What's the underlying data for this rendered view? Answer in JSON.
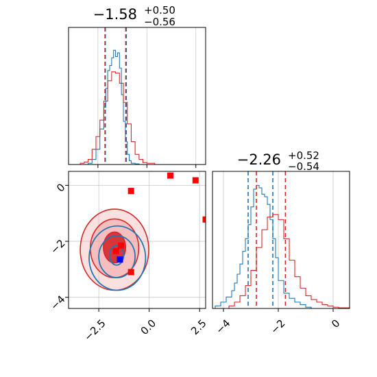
{
  "colors": {
    "red": "#d62728",
    "blue": "#1f77b4",
    "red_fill": "#f4a6a6",
    "marker_red": "#ff0000",
    "marker_blue": "#0000ff",
    "grid": "#c8c8c8"
  },
  "chart_data": {
    "type": "scatter",
    "grid": true,
    "panels": {
      "top_left": {
        "kind": "histogram",
        "title_value": "−1.58",
        "title_sup": "+0.50",
        "title_sub": "−0.56",
        "xlim": [
          -4,
          3
        ],
        "ymax": 1.0,
        "ticks_visible": false,
        "gridlines_x": [
          -2.5,
          0,
          2.5
        ],
        "series": [
          {
            "name": "",
            "color": "blue",
            "edges": [
              -3.0,
              -2.8,
              -2.6,
              -2.4,
              -2.2,
              -2.1,
              -2.0,
              -1.9,
              -1.8,
              -1.7,
              -1.6,
              -1.5,
              -1.4,
              -1.3,
              -1.2,
              -1.1,
              -1.0,
              -0.9,
              -0.8,
              -0.6,
              -0.4,
              -0.2
            ],
            "heights": [
              0.01,
              0.04,
              0.12,
              0.28,
              0.45,
              0.6,
              0.74,
              0.78,
              0.84,
              0.9,
              0.85,
              0.88,
              0.76,
              0.55,
              0.34,
              0.18,
              0.08,
              0.03,
              0.01,
              0.005,
              0.0
            ],
            "quantile_lines": [
              -2.12,
              -1.05
            ]
          },
          {
            "name": "",
            "color": "red",
            "edges": [
              -3.4,
              -3.2,
              -3.0,
              -2.8,
              -2.6,
              -2.4,
              -2.2,
              -2.0,
              -1.8,
              -1.6,
              -1.4,
              -1.2,
              -1.0,
              -0.8,
              -0.6,
              -0.4,
              -0.2,
              0.0,
              0.4
            ],
            "heights": [
              0.01,
              0.02,
              0.04,
              0.12,
              0.22,
              0.35,
              0.5,
              0.66,
              0.73,
              0.72,
              0.64,
              0.49,
              0.32,
              0.18,
              0.08,
              0.04,
              0.015,
              0.01
            ],
            "quantile_lines": [
              -2.14,
              -1.08
            ]
          }
        ]
      },
      "bottom_left": {
        "kind": "contour",
        "xlim": [
          -4,
          2.8
        ],
        "ylim": [
          -4.4,
          0.5
        ],
        "xticks": [
          -2.5,
          0.0,
          2.5
        ],
        "xtick_labels": [
          "−2.5",
          "0.0",
          "2.5"
        ],
        "yticks": [
          0,
          -2,
          -4
        ],
        "ytick_labels": [
          "0",
          "−2",
          "−4"
        ],
        "red_contours": [
          {
            "cx": -1.72,
            "cy": -2.22,
            "rx": 0.55,
            "ry": 0.55
          },
          {
            "cx": -1.72,
            "cy": -2.25,
            "rx": 1.2,
            "ry": 1.05
          },
          {
            "cx": -1.72,
            "cy": -2.3,
            "rx": 1.7,
            "ry": 1.45
          }
        ],
        "blue_contours": [
          {
            "cx": -1.62,
            "cy": -2.5,
            "rx": 0.35,
            "ry": 0.35
          },
          {
            "cx": -1.6,
            "cy": -2.55,
            "rx": 0.9,
            "ry": 0.75
          },
          {
            "cx": -1.58,
            "cy": -2.6,
            "rx": 1.4,
            "ry": 1.15
          }
        ],
        "red_points": [
          {
            "x": -0.9,
            "y": -0.2
          },
          {
            "x": 1.05,
            "y": 0.35
          },
          {
            "x": 2.3,
            "y": 0.18
          },
          {
            "x": 2.8,
            "y": -1.22
          },
          {
            "x": -1.4,
            "y": -2.15
          },
          {
            "x": -1.65,
            "y": -2.35
          },
          {
            "x": -0.9,
            "y": -3.1
          }
        ],
        "blue_points": [
          {
            "x": -1.45,
            "y": -2.65
          }
        ]
      },
      "bottom_right": {
        "kind": "histogram",
        "title_value": "−2.26",
        "title_sup": "+0.52",
        "title_sub": "−0.54",
        "xlim": [
          -4.4,
          0.6
        ],
        "ymax": 1.0,
        "xticks": [
          -4,
          -2,
          0
        ],
        "xtick_labels": [
          "−4",
          "−2",
          "0"
        ],
        "series": [
          {
            "name": "",
            "color": "blue",
            "edges": [
              -4.3,
              -4.1,
              -3.9,
              -3.7,
              -3.6,
              -3.5,
              -3.4,
              -3.3,
              -3.2,
              -3.1,
              -3.0,
              -2.9,
              -2.8,
              -2.7,
              -2.6,
              -2.5,
              -2.4,
              -2.3,
              -2.2,
              -2.1,
              -2.0,
              -1.8,
              -1.6,
              -1.4,
              -1.2,
              -1.0,
              -0.8
            ],
            "heights": [
              0.02,
              0.05,
              0.09,
              0.14,
              0.2,
              0.27,
              0.35,
              0.45,
              0.55,
              0.66,
              0.8,
              0.94,
              0.97,
              0.95,
              0.9,
              0.88,
              0.82,
              0.7,
              0.55,
              0.4,
              0.22,
              0.12,
              0.08,
              0.05,
              0.03,
              0.01
            ],
            "quantile_lines": [
              -3.1,
              -2.2
            ]
          },
          {
            "name": "",
            "color": "red",
            "edges": [
              -3.8,
              -3.6,
              -3.4,
              -3.2,
              -3.0,
              -2.8,
              -2.6,
              -2.4,
              -2.2,
              -2.0,
              -1.8,
              -1.6,
              -1.4,
              -1.2,
              -1.0,
              -0.8,
              -0.6,
              -0.4,
              -0.2,
              0.0,
              0.2,
              0.6
            ],
            "heights": [
              0.02,
              0.05,
              0.1,
              0.18,
              0.3,
              0.48,
              0.62,
              0.72,
              0.74,
              0.7,
              0.55,
              0.38,
              0.25,
              0.16,
              0.1,
              0.07,
              0.05,
              0.03,
              0.02,
              0.01,
              0.005
            ],
            "quantile_lines": [
              -2.8,
              -1.74
            ]
          }
        ]
      }
    }
  }
}
